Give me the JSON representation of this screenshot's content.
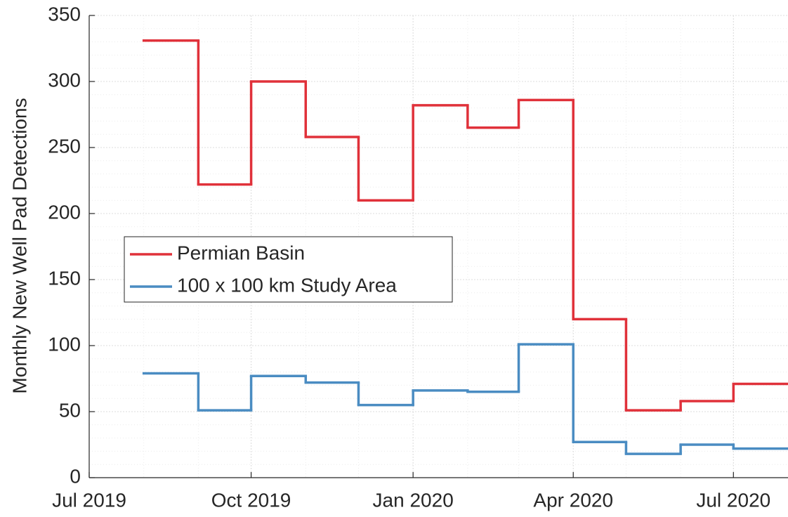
{
  "chart_data": {
    "type": "stairs",
    "y_label": "Monthly New Well Pad Detections",
    "x": [
      "2019-08",
      "2019-09",
      "2019-10",
      "2019-11",
      "2019-12",
      "2020-01",
      "2020-02",
      "2020-03",
      "2020-04",
      "2020-05",
      "2020-06",
      "2020-07"
    ],
    "series": [
      {
        "name": "Permian Basin",
        "color": "#e0313a",
        "values": [
          331,
          222,
          300,
          258,
          210,
          282,
          265,
          286,
          120,
          51,
          58,
          71
        ]
      },
      {
        "name": "100 x 100 km Study Area",
        "color": "#4a8cc2",
        "values": [
          79,
          51,
          77,
          72,
          55,
          66,
          65,
          101,
          27,
          18,
          25,
          22
        ]
      }
    ],
    "xlim": [
      "2019-07",
      "2020-08"
    ],
    "xticks": [
      {
        "value": "2019-07",
        "label": "Jul 2019"
      },
      {
        "value": "2019-10",
        "label": "Oct 2019"
      },
      {
        "value": "2020-01",
        "label": "Jan 2020"
      },
      {
        "value": "2020-04",
        "label": "Apr 2020"
      },
      {
        "value": "2020-07",
        "label": "Jul 2020"
      }
    ],
    "ylim": [
      0,
      350
    ],
    "yticks": [
      0,
      50,
      100,
      150,
      200,
      250,
      300,
      350
    ],
    "grid": true,
    "minor_grid": true,
    "legend": "center-left"
  }
}
